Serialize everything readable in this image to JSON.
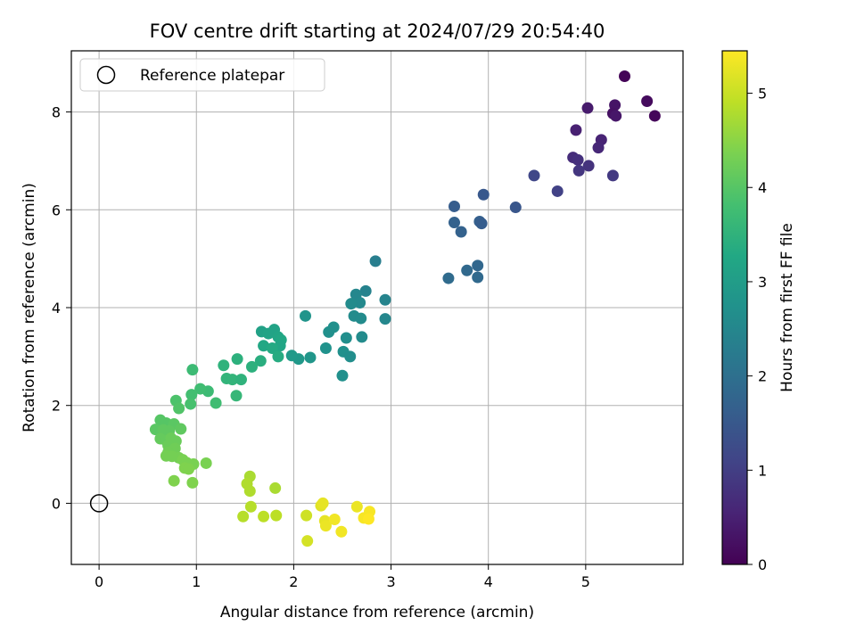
{
  "chart_data": {
    "type": "scatter",
    "title": "FOV centre drift starting at 2024/07/29 20:54:40",
    "xlabel": "Angular distance from reference (arcmin)",
    "ylabel": "Rotation from reference (arcmin)",
    "xlim": [
      -0.285,
      6.0
    ],
    "ylim": [
      -1.25,
      9.25
    ],
    "xticks": [
      0,
      1,
      2,
      3,
      4,
      5
    ],
    "yticks": [
      0,
      2,
      4,
      6,
      8
    ],
    "grid": true,
    "legend": {
      "placement": "upper-left",
      "entries": [
        "Reference platepar"
      ]
    },
    "reference_point": {
      "x": 0,
      "y": 0
    },
    "colorbar": {
      "label": "Hours from first FF file",
      "range": [
        0,
        5.45
      ],
      "ticks": [
        0,
        1,
        2,
        3,
        4,
        5
      ],
      "colormap": "viridis"
    },
    "points": [
      {
        "x": 5.4,
        "y": 8.73,
        "c": 0.05
      },
      {
        "x": 5.63,
        "y": 8.22,
        "c": 0.15
      },
      {
        "x": 5.71,
        "y": 7.92,
        "c": 0.1
      },
      {
        "x": 5.3,
        "y": 8.14,
        "c": 0.3
      },
      {
        "x": 5.28,
        "y": 7.97,
        "c": 0.25
      },
      {
        "x": 5.31,
        "y": 7.92,
        "c": 0.35
      },
      {
        "x": 5.02,
        "y": 8.08,
        "c": 0.4
      },
      {
        "x": 4.9,
        "y": 7.63,
        "c": 0.5
      },
      {
        "x": 5.16,
        "y": 7.43,
        "c": 0.55
      },
      {
        "x": 5.13,
        "y": 7.27,
        "c": 0.6
      },
      {
        "x": 4.87,
        "y": 7.07,
        "c": 0.7
      },
      {
        "x": 4.92,
        "y": 7.02,
        "c": 0.75
      },
      {
        "x": 5.03,
        "y": 6.9,
        "c": 0.8
      },
      {
        "x": 4.93,
        "y": 6.8,
        "c": 0.85
      },
      {
        "x": 5.28,
        "y": 6.7,
        "c": 0.9
      },
      {
        "x": 4.47,
        "y": 6.7,
        "c": 1.15
      },
      {
        "x": 4.71,
        "y": 6.38,
        "c": 1.05
      },
      {
        "x": 3.95,
        "y": 6.31,
        "c": 1.5
      },
      {
        "x": 4.28,
        "y": 6.05,
        "c": 1.45
      },
      {
        "x": 3.65,
        "y": 6.07,
        "c": 1.6
      },
      {
        "x": 3.65,
        "y": 5.74,
        "c": 1.7
      },
      {
        "x": 3.91,
        "y": 5.76,
        "c": 1.65
      },
      {
        "x": 3.93,
        "y": 5.72,
        "c": 1.6
      },
      {
        "x": 3.72,
        "y": 5.55,
        "c": 1.7
      },
      {
        "x": 3.89,
        "y": 4.86,
        "c": 1.8
      },
      {
        "x": 3.78,
        "y": 4.76,
        "c": 1.85
      },
      {
        "x": 3.59,
        "y": 4.6,
        "c": 1.9
      },
      {
        "x": 3.89,
        "y": 4.62,
        "c": 1.85
      },
      {
        "x": 2.84,
        "y": 4.95,
        "c": 2.3
      },
      {
        "x": 2.74,
        "y": 4.34,
        "c": 2.4
      },
      {
        "x": 2.64,
        "y": 4.27,
        "c": 2.5
      },
      {
        "x": 2.94,
        "y": 4.16,
        "c": 2.45
      },
      {
        "x": 2.68,
        "y": 4.1,
        "c": 2.55
      },
      {
        "x": 2.59,
        "y": 4.08,
        "c": 2.6
      },
      {
        "x": 2.62,
        "y": 3.83,
        "c": 2.6
      },
      {
        "x": 2.12,
        "y": 3.83,
        "c": 2.8
      },
      {
        "x": 2.69,
        "y": 3.78,
        "c": 2.6
      },
      {
        "x": 2.94,
        "y": 3.77,
        "c": 2.5
      },
      {
        "x": 2.41,
        "y": 3.6,
        "c": 2.7
      },
      {
        "x": 2.36,
        "y": 3.5,
        "c": 2.7
      },
      {
        "x": 2.54,
        "y": 3.38,
        "c": 2.65
      },
      {
        "x": 2.7,
        "y": 3.4,
        "c": 2.6
      },
      {
        "x": 2.33,
        "y": 3.17,
        "c": 2.75
      },
      {
        "x": 2.51,
        "y": 3.1,
        "c": 2.7
      },
      {
        "x": 2.58,
        "y": 3.0,
        "c": 2.65
      },
      {
        "x": 2.5,
        "y": 2.61,
        "c": 2.7
      },
      {
        "x": 2.17,
        "y": 2.98,
        "c": 2.85
      },
      {
        "x": 2.05,
        "y": 2.95,
        "c": 2.9
      },
      {
        "x": 1.98,
        "y": 3.02,
        "c": 2.95
      },
      {
        "x": 1.67,
        "y": 3.51,
        "c": 3.1
      },
      {
        "x": 1.8,
        "y": 3.55,
        "c": 3.15
      },
      {
        "x": 1.74,
        "y": 3.47,
        "c": 3.15
      },
      {
        "x": 1.84,
        "y": 3.4,
        "c": 3.2
      },
      {
        "x": 1.87,
        "y": 3.34,
        "c": 3.25
      },
      {
        "x": 1.86,
        "y": 3.22,
        "c": 3.2
      },
      {
        "x": 1.69,
        "y": 3.22,
        "c": 3.25
      },
      {
        "x": 1.78,
        "y": 3.17,
        "c": 3.3
      },
      {
        "x": 1.84,
        "y": 3.0,
        "c": 3.35
      },
      {
        "x": 1.66,
        "y": 2.91,
        "c": 3.4
      },
      {
        "x": 1.57,
        "y": 2.79,
        "c": 3.45
      },
      {
        "x": 1.28,
        "y": 2.82,
        "c": 3.5
      },
      {
        "x": 1.42,
        "y": 2.95,
        "c": 3.45
      },
      {
        "x": 1.31,
        "y": 2.55,
        "c": 3.55
      },
      {
        "x": 1.37,
        "y": 2.53,
        "c": 3.55
      },
      {
        "x": 1.46,
        "y": 2.53,
        "c": 3.5
      },
      {
        "x": 1.41,
        "y": 2.2,
        "c": 3.6
      },
      {
        "x": 1.12,
        "y": 2.29,
        "c": 3.7
      },
      {
        "x": 1.04,
        "y": 2.34,
        "c": 3.75
      },
      {
        "x": 0.95,
        "y": 2.22,
        "c": 3.8
      },
      {
        "x": 1.2,
        "y": 2.05,
        "c": 3.75
      },
      {
        "x": 0.94,
        "y": 2.03,
        "c": 3.85
      },
      {
        "x": 0.79,
        "y": 2.1,
        "c": 3.9
      },
      {
        "x": 0.82,
        "y": 1.94,
        "c": 3.95
      },
      {
        "x": 0.96,
        "y": 2.73,
        "c": 3.7
      },
      {
        "x": 0.63,
        "y": 1.7,
        "c": 4.0
      },
      {
        "x": 0.69,
        "y": 1.64,
        "c": 4.0
      },
      {
        "x": 0.77,
        "y": 1.62,
        "c": 4.05
      },
      {
        "x": 0.58,
        "y": 1.51,
        "c": 4.05
      },
      {
        "x": 0.66,
        "y": 1.5,
        "c": 4.1
      },
      {
        "x": 0.72,
        "y": 1.48,
        "c": 4.1
      },
      {
        "x": 0.84,
        "y": 1.52,
        "c": 4.1
      },
      {
        "x": 0.63,
        "y": 1.32,
        "c": 4.15
      },
      {
        "x": 0.69,
        "y": 1.28,
        "c": 4.15
      },
      {
        "x": 0.74,
        "y": 1.33,
        "c": 4.2
      },
      {
        "x": 0.79,
        "y": 1.27,
        "c": 4.2
      },
      {
        "x": 0.71,
        "y": 1.18,
        "c": 4.2
      },
      {
        "x": 0.78,
        "y": 1.12,
        "c": 4.25
      },
      {
        "x": 0.71,
        "y": 1.04,
        "c": 4.25
      },
      {
        "x": 0.69,
        "y": 0.97,
        "c": 4.3
      },
      {
        "x": 0.75,
        "y": 0.96,
        "c": 4.3
      },
      {
        "x": 0.82,
        "y": 0.93,
        "c": 4.3
      },
      {
        "x": 0.86,
        "y": 0.89,
        "c": 4.35
      },
      {
        "x": 0.9,
        "y": 0.83,
        "c": 4.35
      },
      {
        "x": 0.97,
        "y": 0.8,
        "c": 4.35
      },
      {
        "x": 0.88,
        "y": 0.72,
        "c": 4.4
      },
      {
        "x": 0.92,
        "y": 0.7,
        "c": 4.4
      },
      {
        "x": 1.1,
        "y": 0.82,
        "c": 4.35
      },
      {
        "x": 0.77,
        "y": 0.46,
        "c": 4.4
      },
      {
        "x": 0.96,
        "y": 0.42,
        "c": 4.4
      },
      {
        "x": 1.55,
        "y": 0.55,
        "c": 4.75
      },
      {
        "x": 1.52,
        "y": 0.4,
        "c": 4.8
      },
      {
        "x": 1.55,
        "y": 0.25,
        "c": 4.8
      },
      {
        "x": 1.81,
        "y": 0.31,
        "c": 4.75
      },
      {
        "x": 1.56,
        "y": -0.07,
        "c": 4.85
      },
      {
        "x": 1.48,
        "y": -0.27,
        "c": 4.85
      },
      {
        "x": 1.69,
        "y": -0.27,
        "c": 4.9
      },
      {
        "x": 1.82,
        "y": -0.25,
        "c": 4.9
      },
      {
        "x": 2.13,
        "y": -0.25,
        "c": 5.05
      },
      {
        "x": 2.14,
        "y": -0.77,
        "c": 5.1
      },
      {
        "x": 2.28,
        "y": -0.05,
        "c": 5.2
      },
      {
        "x": 2.3,
        "y": 0.0,
        "c": 5.25
      },
      {
        "x": 2.32,
        "y": -0.36,
        "c": 5.25
      },
      {
        "x": 2.33,
        "y": -0.46,
        "c": 5.3
      },
      {
        "x": 2.42,
        "y": -0.33,
        "c": 5.35
      },
      {
        "x": 2.49,
        "y": -0.58,
        "c": 5.35
      },
      {
        "x": 2.65,
        "y": -0.07,
        "c": 5.3
      },
      {
        "x": 2.72,
        "y": -0.3,
        "c": 5.4
      },
      {
        "x": 2.76,
        "y": -0.28,
        "c": 5.4
      },
      {
        "x": 2.78,
        "y": -0.17,
        "c": 5.4
      },
      {
        "x": 2.77,
        "y": -0.32,
        "c": 5.45
      }
    ]
  }
}
